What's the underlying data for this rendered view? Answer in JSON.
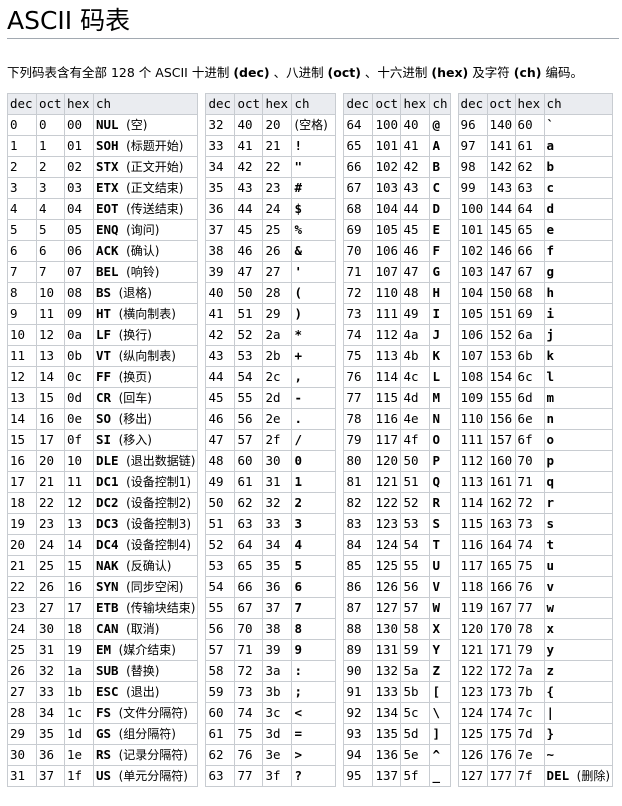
{
  "page": {
    "title": "ASCII 码表",
    "intro": {
      "p1": "下列码表含有全部 128 个 ASCII 十进制 ",
      "dec": "(dec)",
      "p2": " 、八进制 ",
      "oct": "(oct)",
      "p3": " 、十六进制 ",
      "hex": "(hex)",
      "p4": " 及字符 ",
      "ch": "(ch)",
      "p5": " 编码。"
    }
  },
  "table": {
    "headers": [
      "dec",
      "oct",
      "hex",
      "ch"
    ],
    "rows": [
      [
        [
          "0",
          "0",
          "00",
          "NUL",
          "(空)"
        ],
        [
          "32",
          "40",
          "20",
          "",
          "(空格)"
        ],
        [
          "64",
          "100",
          "40",
          "@",
          ""
        ],
        [
          "96",
          "140",
          "60",
          "`",
          ""
        ]
      ],
      [
        [
          "1",
          "1",
          "01",
          "SOH",
          "(标题开始)"
        ],
        [
          "33",
          "41",
          "21",
          "!",
          ""
        ],
        [
          "65",
          "101",
          "41",
          "A",
          ""
        ],
        [
          "97",
          "141",
          "61",
          "a",
          ""
        ]
      ],
      [
        [
          "2",
          "2",
          "02",
          "STX",
          "(正文开始)"
        ],
        [
          "34",
          "42",
          "22",
          "\"",
          ""
        ],
        [
          "66",
          "102",
          "42",
          "B",
          ""
        ],
        [
          "98",
          "142",
          "62",
          "b",
          ""
        ]
      ],
      [
        [
          "3",
          "3",
          "03",
          "ETX",
          "(正文结束)"
        ],
        [
          "35",
          "43",
          "23",
          "#",
          ""
        ],
        [
          "67",
          "103",
          "43",
          "C",
          ""
        ],
        [
          "99",
          "143",
          "63",
          "c",
          ""
        ]
      ],
      [
        [
          "4",
          "4",
          "04",
          "EOT",
          "(传送结束)"
        ],
        [
          "36",
          "44",
          "24",
          "$",
          ""
        ],
        [
          "68",
          "104",
          "44",
          "D",
          ""
        ],
        [
          "100",
          "144",
          "64",
          "d",
          ""
        ]
      ],
      [
        [
          "5",
          "5",
          "05",
          "ENQ",
          "(询问)"
        ],
        [
          "37",
          "45",
          "25",
          "%",
          ""
        ],
        [
          "69",
          "105",
          "45",
          "E",
          ""
        ],
        [
          "101",
          "145",
          "65",
          "e",
          ""
        ]
      ],
      [
        [
          "6",
          "6",
          "06",
          "ACK",
          "(确认)"
        ],
        [
          "38",
          "46",
          "26",
          "&",
          ""
        ],
        [
          "70",
          "106",
          "46",
          "F",
          ""
        ],
        [
          "102",
          "146",
          "66",
          "f",
          ""
        ]
      ],
      [
        [
          "7",
          "7",
          "07",
          "BEL",
          "(响铃)"
        ],
        [
          "39",
          "47",
          "27",
          "'",
          ""
        ],
        [
          "71",
          "107",
          "47",
          "G",
          ""
        ],
        [
          "103",
          "147",
          "67",
          "g",
          ""
        ]
      ],
      [
        [
          "8",
          "10",
          "08",
          "BS",
          "(退格)"
        ],
        [
          "40",
          "50",
          "28",
          "(",
          ""
        ],
        [
          "72",
          "110",
          "48",
          "H",
          ""
        ],
        [
          "104",
          "150",
          "68",
          "h",
          ""
        ]
      ],
      [
        [
          "9",
          "11",
          "09",
          "HT",
          "(横向制表)"
        ],
        [
          "41",
          "51",
          "29",
          ")",
          ""
        ],
        [
          "73",
          "111",
          "49",
          "I",
          ""
        ],
        [
          "105",
          "151",
          "69",
          "i",
          ""
        ]
      ],
      [
        [
          "10",
          "12",
          "0a",
          "LF",
          "(换行)"
        ],
        [
          "42",
          "52",
          "2a",
          "*",
          ""
        ],
        [
          "74",
          "112",
          "4a",
          "J",
          ""
        ],
        [
          "106",
          "152",
          "6a",
          "j",
          ""
        ]
      ],
      [
        [
          "11",
          "13",
          "0b",
          "VT",
          "(纵向制表)"
        ],
        [
          "43",
          "53",
          "2b",
          "+",
          ""
        ],
        [
          "75",
          "113",
          "4b",
          "K",
          ""
        ],
        [
          "107",
          "153",
          "6b",
          "k",
          ""
        ]
      ],
      [
        [
          "12",
          "14",
          "0c",
          "FF",
          "(换页)"
        ],
        [
          "44",
          "54",
          "2c",
          ",",
          ""
        ],
        [
          "76",
          "114",
          "4c",
          "L",
          ""
        ],
        [
          "108",
          "154",
          "6c",
          "l",
          ""
        ]
      ],
      [
        [
          "13",
          "15",
          "0d",
          "CR",
          "(回车)"
        ],
        [
          "45",
          "55",
          "2d",
          "-",
          ""
        ],
        [
          "77",
          "115",
          "4d",
          "M",
          ""
        ],
        [
          "109",
          "155",
          "6d",
          "m",
          ""
        ]
      ],
      [
        [
          "14",
          "16",
          "0e",
          "SO",
          "(移出)"
        ],
        [
          "46",
          "56",
          "2e",
          ".",
          ""
        ],
        [
          "78",
          "116",
          "4e",
          "N",
          ""
        ],
        [
          "110",
          "156",
          "6e",
          "n",
          ""
        ]
      ],
      [
        [
          "15",
          "17",
          "0f",
          "SI",
          "(移入)"
        ],
        [
          "47",
          "57",
          "2f",
          "/",
          ""
        ],
        [
          "79",
          "117",
          "4f",
          "O",
          ""
        ],
        [
          "111",
          "157",
          "6f",
          "o",
          ""
        ]
      ],
      [
        [
          "16",
          "20",
          "10",
          "DLE",
          "(退出数据链)"
        ],
        [
          "48",
          "60",
          "30",
          "0",
          ""
        ],
        [
          "80",
          "120",
          "50",
          "P",
          ""
        ],
        [
          "112",
          "160",
          "70",
          "p",
          ""
        ]
      ],
      [
        [
          "17",
          "21",
          "11",
          "DC1",
          "(设备控制1)"
        ],
        [
          "49",
          "61",
          "31",
          "1",
          ""
        ],
        [
          "81",
          "121",
          "51",
          "Q",
          ""
        ],
        [
          "113",
          "161",
          "71",
          "q",
          ""
        ]
      ],
      [
        [
          "18",
          "22",
          "12",
          "DC2",
          "(设备控制2)"
        ],
        [
          "50",
          "62",
          "32",
          "2",
          ""
        ],
        [
          "82",
          "122",
          "52",
          "R",
          ""
        ],
        [
          "114",
          "162",
          "72",
          "r",
          ""
        ]
      ],
      [
        [
          "19",
          "23",
          "13",
          "DC3",
          "(设备控制3)"
        ],
        [
          "51",
          "63",
          "33",
          "3",
          ""
        ],
        [
          "83",
          "123",
          "53",
          "S",
          ""
        ],
        [
          "115",
          "163",
          "73",
          "s",
          ""
        ]
      ],
      [
        [
          "20",
          "24",
          "14",
          "DC4",
          "(设备控制4)"
        ],
        [
          "52",
          "64",
          "34",
          "4",
          ""
        ],
        [
          "84",
          "124",
          "54",
          "T",
          ""
        ],
        [
          "116",
          "164",
          "74",
          "t",
          ""
        ]
      ],
      [
        [
          "21",
          "25",
          "15",
          "NAK",
          "(反确认)"
        ],
        [
          "53",
          "65",
          "35",
          "5",
          ""
        ],
        [
          "85",
          "125",
          "55",
          "U",
          ""
        ],
        [
          "117",
          "165",
          "75",
          "u",
          ""
        ]
      ],
      [
        [
          "22",
          "26",
          "16",
          "SYN",
          "(同步空闲)"
        ],
        [
          "54",
          "66",
          "36",
          "6",
          ""
        ],
        [
          "86",
          "126",
          "56",
          "V",
          ""
        ],
        [
          "118",
          "166",
          "76",
          "v",
          ""
        ]
      ],
      [
        [
          "23",
          "27",
          "17",
          "ETB",
          "(传输块结束)"
        ],
        [
          "55",
          "67",
          "37",
          "7",
          ""
        ],
        [
          "87",
          "127",
          "57",
          "W",
          ""
        ],
        [
          "119",
          "167",
          "77",
          "w",
          ""
        ]
      ],
      [
        [
          "24",
          "30",
          "18",
          "CAN",
          "(取消)"
        ],
        [
          "56",
          "70",
          "38",
          "8",
          ""
        ],
        [
          "88",
          "130",
          "58",
          "X",
          ""
        ],
        [
          "120",
          "170",
          "78",
          "x",
          ""
        ]
      ],
      [
        [
          "25",
          "31",
          "19",
          "EM",
          "(媒介结束)"
        ],
        [
          "57",
          "71",
          "39",
          "9",
          ""
        ],
        [
          "89",
          "131",
          "59",
          "Y",
          ""
        ],
        [
          "121",
          "171",
          "79",
          "y",
          ""
        ]
      ],
      [
        [
          "26",
          "32",
          "1a",
          "SUB",
          "(替换)"
        ],
        [
          "58",
          "72",
          "3a",
          ":",
          ""
        ],
        [
          "90",
          "132",
          "5a",
          "Z",
          ""
        ],
        [
          "122",
          "172",
          "7a",
          "z",
          ""
        ]
      ],
      [
        [
          "27",
          "33",
          "1b",
          "ESC",
          "(退出)"
        ],
        [
          "59",
          "73",
          "3b",
          ";",
          ""
        ],
        [
          "91",
          "133",
          "5b",
          "[",
          ""
        ],
        [
          "123",
          "173",
          "7b",
          "{",
          ""
        ]
      ],
      [
        [
          "28",
          "34",
          "1c",
          "FS",
          "(文件分隔符)"
        ],
        [
          "60",
          "74",
          "3c",
          "<",
          ""
        ],
        [
          "92",
          "134",
          "5c",
          "\\",
          ""
        ],
        [
          "124",
          "174",
          "7c",
          "|",
          ""
        ]
      ],
      [
        [
          "29",
          "35",
          "1d",
          "GS",
          "(组分隔符)"
        ],
        [
          "61",
          "75",
          "3d",
          "=",
          ""
        ],
        [
          "93",
          "135",
          "5d",
          "]",
          ""
        ],
        [
          "125",
          "175",
          "7d",
          "}",
          ""
        ]
      ],
      [
        [
          "30",
          "36",
          "1e",
          "RS",
          "(记录分隔符)"
        ],
        [
          "62",
          "76",
          "3e",
          ">",
          ""
        ],
        [
          "94",
          "136",
          "5e",
          "^",
          ""
        ],
        [
          "126",
          "176",
          "7e",
          "~",
          ""
        ]
      ],
      [
        [
          "31",
          "37",
          "1f",
          "US",
          "(单元分隔符)"
        ],
        [
          "63",
          "77",
          "3f",
          "?",
          ""
        ],
        [
          "95",
          "137",
          "5f",
          "_",
          ""
        ],
        [
          "127",
          "177",
          "7f",
          "DEL",
          "(删除)"
        ]
      ]
    ]
  }
}
